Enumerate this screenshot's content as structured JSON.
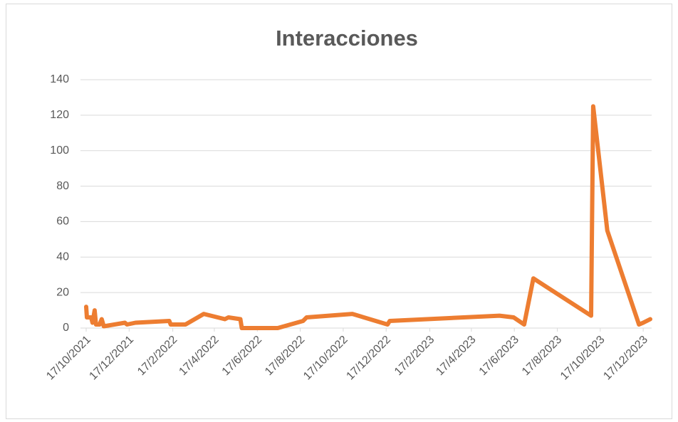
{
  "chart_data": {
    "type": "line",
    "title": "Interacciones",
    "x": [
      "2021-10-17",
      "2021-10-18",
      "2021-10-24",
      "2021-10-26",
      "2021-10-29",
      "2021-10-31",
      "2021-11-05",
      "2021-11-08",
      "2021-11-11",
      "2021-12-11",
      "2021-12-14",
      "2021-12-26",
      "2022-02-12",
      "2022-02-14",
      "2022-03-07",
      "2022-04-02",
      "2022-05-02",
      "2022-05-07",
      "2022-05-24",
      "2022-05-26",
      "2022-07-16",
      "2022-08-21",
      "2022-08-26",
      "2022-10-30",
      "2022-12-19",
      "2022-12-22",
      "2023-05-27",
      "2023-06-16",
      "2023-07-01",
      "2023-07-14",
      "2023-10-04",
      "2023-10-07",
      "2023-10-27",
      "2023-12-11",
      "2023-12-17",
      "2023-12-27"
    ],
    "series": [
      {
        "name": "Interacciones",
        "color": "#ED7D31",
        "values": [
          12,
          6,
          6,
          3,
          10,
          2,
          2,
          5,
          1,
          3,
          2,
          3,
          4,
          2,
          2,
          8,
          5,
          6,
          5,
          0,
          0,
          4,
          6,
          8,
          2,
          4,
          7,
          6,
          2,
          28,
          7,
          125,
          55,
          2,
          3,
          5
        ]
      }
    ],
    "xlim": [
      "2021-10-17",
      "2023-12-29"
    ],
    "xticks": [
      {
        "value": "2021-10-17",
        "label": "17/10/2021"
      },
      {
        "value": "2021-12-17",
        "label": "17/12/2021"
      },
      {
        "value": "2022-02-17",
        "label": "17/2/2022"
      },
      {
        "value": "2022-04-17",
        "label": "17/4/2022"
      },
      {
        "value": "2022-06-17",
        "label": "17/6/2022"
      },
      {
        "value": "2022-08-17",
        "label": "17/8/2022"
      },
      {
        "value": "2022-10-17",
        "label": "17/10/2022"
      },
      {
        "value": "2022-12-17",
        "label": "17/12/2022"
      },
      {
        "value": "2023-02-17",
        "label": "17/2/2023"
      },
      {
        "value": "2023-04-17",
        "label": "17/4/2023"
      },
      {
        "value": "2023-06-17",
        "label": "17/6/2023"
      },
      {
        "value": "2023-08-17",
        "label": "17/8/2023"
      },
      {
        "value": "2023-10-17",
        "label": "17/10/2023"
      },
      {
        "value": "2023-12-17",
        "label": "17/12/2023"
      }
    ],
    "ylim": [
      0,
      140
    ],
    "yticks": [
      0,
      20,
      40,
      60,
      80,
      100,
      120,
      140
    ],
    "grid": true
  }
}
